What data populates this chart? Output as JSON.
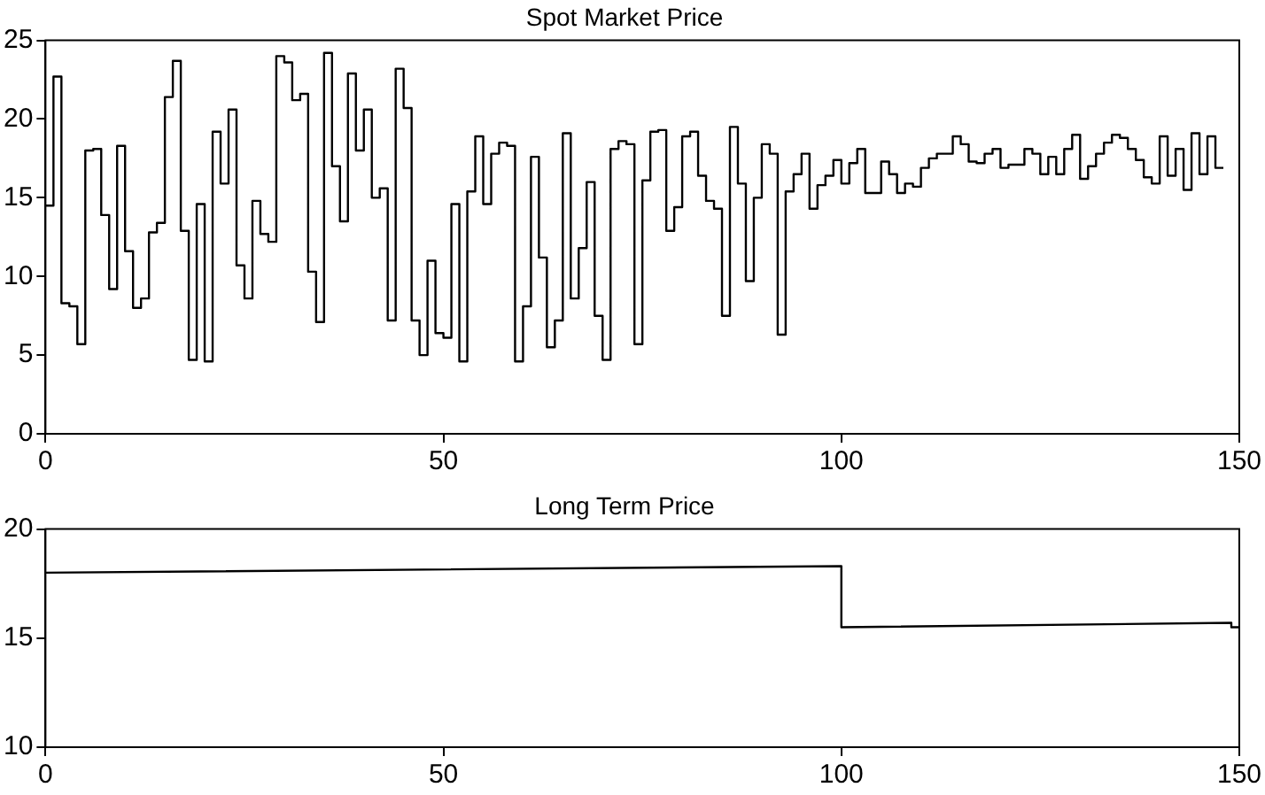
{
  "chart_data": [
    {
      "type": "step",
      "title": "Spot Market Price",
      "x": [
        0,
        1,
        2,
        3,
        4,
        5,
        6,
        7,
        8,
        9,
        10,
        11,
        12,
        13,
        14,
        15,
        16,
        17,
        18,
        19,
        20,
        21,
        22,
        23,
        24,
        25,
        26,
        27,
        28,
        29,
        30,
        31,
        32,
        33,
        34,
        35,
        36,
        37,
        38,
        39,
        40,
        41,
        42,
        43,
        44,
        45,
        46,
        47,
        48,
        49,
        50,
        51,
        52,
        53,
        54,
        55,
        56,
        57,
        58,
        59,
        60,
        61,
        62,
        63,
        64,
        65,
        66,
        67,
        68,
        69,
        70,
        71,
        72,
        73,
        74,
        75,
        76,
        77,
        78,
        79,
        80,
        81,
        82,
        83,
        84,
        85,
        86,
        87,
        88,
        89,
        90,
        91,
        92,
        93,
        94,
        95,
        96,
        97,
        98,
        99,
        100,
        101,
        102,
        103,
        104,
        105,
        106,
        107,
        108,
        109,
        110,
        111,
        112,
        113,
        114,
        115,
        116,
        117,
        118,
        119,
        120,
        121,
        122,
        123,
        124,
        125,
        126,
        127,
        128,
        129,
        130,
        131,
        132,
        133,
        134,
        135,
        136,
        137,
        138,
        139,
        140,
        141,
        142,
        143,
        144,
        145,
        146,
        147,
        148
      ],
      "series": [
        {
          "color": "#000000",
          "values": [
            14.5,
            22.7,
            8.3,
            8.1,
            5.7,
            18.0,
            18.1,
            13.9,
            9.2,
            18.3,
            11.6,
            8.0,
            8.6,
            12.8,
            13.4,
            21.4,
            23.7,
            12.9,
            4.7,
            14.6,
            4.6,
            19.2,
            15.9,
            20.6,
            10.7,
            8.6,
            14.8,
            12.7,
            12.2,
            24.0,
            23.6,
            21.2,
            21.6,
            10.3,
            7.1,
            24.2,
            17.0,
            13.5,
            22.9,
            18.0,
            20.6,
            15.0,
            15.6,
            7.2,
            23.2,
            20.7,
            7.2,
            5.0,
            11.0,
            6.4,
            6.1,
            14.6,
            4.6,
            15.4,
            18.9,
            14.6,
            17.8,
            18.5,
            18.3,
            4.6,
            8.1,
            17.6,
            11.2,
            5.5,
            7.2,
            19.1,
            8.6,
            11.8,
            16.0,
            7.5,
            4.7,
            18.1,
            18.6,
            18.4,
            5.7,
            16.1,
            19.2,
            19.3,
            12.9,
            14.4,
            18.9,
            19.2,
            16.4,
            14.8,
            14.3,
            7.5,
            19.5,
            15.9,
            9.7,
            15.0,
            18.4,
            17.8,
            6.3,
            15.4,
            16.5,
            17.8,
            14.3,
            15.8,
            16.4,
            17.4,
            15.9,
            17.2,
            18.1,
            15.3,
            15.3,
            17.3,
            16.5,
            15.3,
            15.9,
            15.7,
            16.9,
            17.5,
            17.8,
            17.8,
            18.9,
            18.4,
            17.3,
            17.2,
            17.8,
            18.1,
            16.9,
            17.1,
            17.1,
            18.1,
            17.8,
            16.5,
            17.6,
            16.5,
            18.1,
            19.0,
            16.2,
            17.0,
            17.8,
            18.5,
            19.0,
            18.8,
            18.1,
            17.4,
            16.3,
            15.9,
            18.9,
            16.4,
            18.1,
            15.5,
            19.1,
            16.5,
            18.9,
            16.9,
            16.9
          ]
        }
      ],
      "xlim": [
        0,
        150
      ],
      "xticks": [
        0,
        50,
        100,
        150
      ],
      "ylim": [
        0,
        25
      ],
      "yticks": [
        0,
        5,
        10,
        15,
        20,
        25
      ],
      "grid": false,
      "legend": false
    },
    {
      "type": "line",
      "title": "Long Term Price",
      "x": [
        0,
        100,
        100,
        149,
        149,
        150
      ],
      "series": [
        {
          "color": "#000000",
          "values": [
            18.0,
            18.3,
            15.5,
            15.7,
            15.5,
            15.5
          ]
        }
      ],
      "xlim": [
        0,
        150
      ],
      "xticks": [
        0,
        50,
        100,
        150
      ],
      "ylim": [
        10,
        20
      ],
      "yticks": [
        10,
        15,
        20
      ],
      "grid": false,
      "legend": false
    }
  ]
}
